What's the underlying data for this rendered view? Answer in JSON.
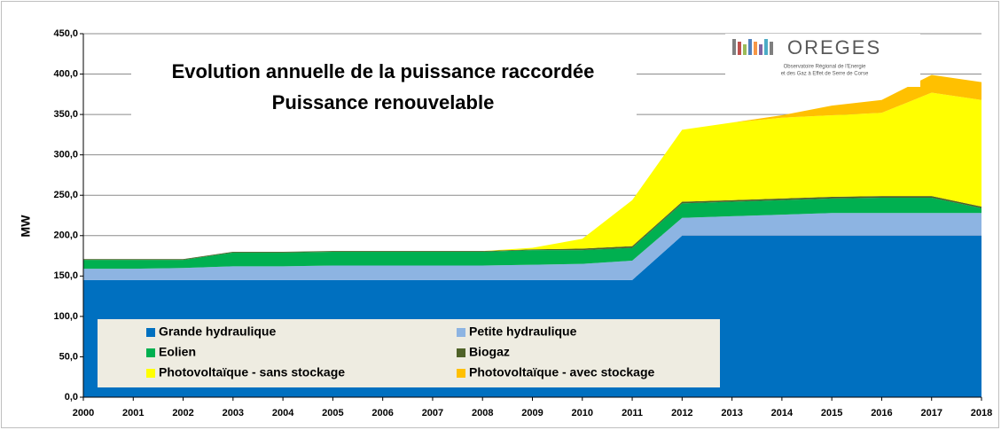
{
  "chart_data": {
    "type": "stacked-area",
    "title": "Evolution annuelle de la puissance raccordée",
    "subtitle": "Puissance renouvelable",
    "y_label": "MW",
    "logo": "OREGES",
    "logo_subtitle": [
      "Observatoire Régional de l'Energie",
      "et des Gaz à Effet de Serre de Corse"
    ],
    "categories": [
      "2000",
      "2001",
      "2002",
      "2003",
      "2004",
      "2005",
      "2006",
      "2007",
      "2008",
      "2009",
      "2010",
      "2011",
      "2012",
      "2013",
      "2014",
      "2015",
      "2016",
      "2017",
      "2018"
    ],
    "series": [
      {
        "name": "Grande hydraulique",
        "color": "#0070c0",
        "values": [
          145,
          145,
          145,
          145,
          145,
          145,
          145,
          145,
          145,
          145,
          145,
          145,
          200,
          200,
          200,
          200,
          200,
          200,
          200
        ]
      },
      {
        "name": "Petite hydraulique",
        "color": "#8db4e2",
        "values": [
          14,
          14,
          15,
          17,
          17,
          18,
          18,
          18,
          18,
          19,
          20,
          24,
          22,
          24,
          26,
          28,
          28,
          28,
          28
        ]
      },
      {
        "name": "Eolien",
        "color": "#00b050",
        "values": [
          11,
          11,
          10,
          17,
          17,
          17,
          17,
          17,
          17,
          18,
          17,
          16,
          18,
          18,
          18,
          18,
          19,
          19,
          6
        ]
      },
      {
        "name": "Biogaz",
        "color": "#4f6228",
        "values": [
          1,
          1,
          1,
          1,
          1,
          1,
          1,
          1,
          1,
          1,
          2,
          2,
          2,
          2,
          2,
          2,
          2,
          2,
          2
        ]
      },
      {
        "name": "Photovoltaïque - sans stockage",
        "color": "#ffff00",
        "values": [
          0,
          0,
          0,
          0,
          0,
          0,
          0,
          0,
          0,
          2,
          12,
          57,
          89,
          96,
          100,
          101,
          103,
          128,
          132
        ]
      },
      {
        "name": "Photovoltaïque - avec stockage",
        "color": "#ffc000",
        "values": [
          0,
          0,
          0,
          0,
          0,
          0,
          0,
          0,
          0,
          0,
          0,
          0,
          0,
          0,
          3,
          12,
          16,
          22,
          22
        ]
      }
    ],
    "ylim": [
      0,
      450
    ],
    "yticks": [
      {
        "value": 0,
        "label": "0,0"
      },
      {
        "value": 50,
        "label": "50,0"
      },
      {
        "value": 100,
        "label": "100,0"
      },
      {
        "value": 150,
        "label": "150,0"
      },
      {
        "value": 200,
        "label": "200,0"
      },
      {
        "value": 250,
        "label": "250,0"
      },
      {
        "value": 300,
        "label": "300,0"
      },
      {
        "value": 350,
        "label": "350,0"
      },
      {
        "value": 400,
        "label": "400,0"
      },
      {
        "value": 450,
        "label": "450,0"
      }
    ],
    "grid": true,
    "legend": "bottom-left"
  }
}
